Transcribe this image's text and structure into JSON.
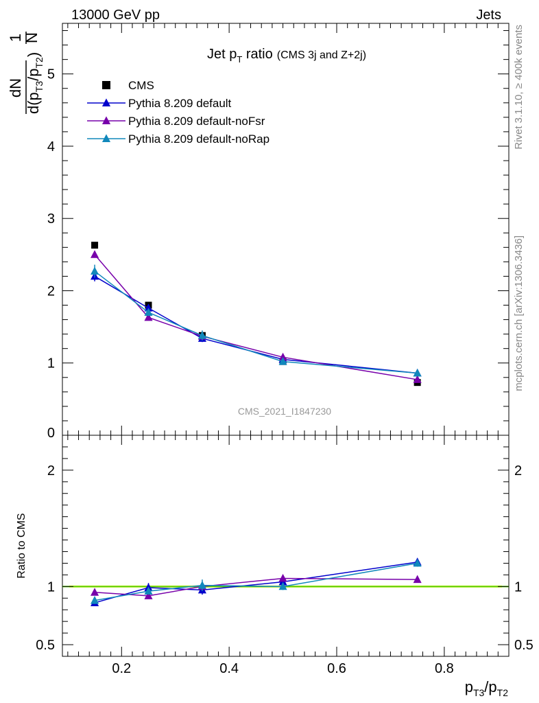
{
  "header": {
    "left": "13000 GeV pp",
    "right": "Jets"
  },
  "side_text": {
    "rivet": "Rivet 3.1.10, ≥ 400k events",
    "source": "mcplots.cern.ch [arXiv:1306.3436]"
  },
  "watermark": "CMS_2021_I1847230",
  "chart_data": {
    "type": "line",
    "title": {
      "main": "Jet p",
      "main_sub": "T",
      "main_suffix": " ratio",
      "small": "(CMS 3j and Z+2j)"
    },
    "ylabel_main": {
      "frac_num": "1",
      "frac_den": "N",
      "deriv_num": "dN",
      "deriv_den_prefix": "d(p",
      "deriv_den_sub1": "T3",
      "deriv_den_mid": "/p",
      "deriv_den_sub2": "T2",
      "deriv_den_suffix": ")"
    },
    "ylabel_ratio": "Ratio to CMS",
    "xlabel": {
      "p1": "p",
      "s1": "T3",
      "mid": "/p",
      "s2": "T2"
    },
    "xlim": [
      0.09,
      0.92
    ],
    "ylim_main": [
      0,
      5.7
    ],
    "ylim_ratio": [
      0.4,
      2.3
    ],
    "x_ticks": [
      "0.2",
      "0.4",
      "0.6",
      "0.8"
    ],
    "y_ticks_main": [
      "0",
      "1",
      "2",
      "3",
      "4",
      "5"
    ],
    "y_ticks_ratio": [
      "0.5",
      "1",
      "2"
    ],
    "x": [
      0.15,
      0.25,
      0.35,
      0.5,
      0.75
    ],
    "series": [
      {
        "name": "CMS",
        "marker": "square",
        "color": "#000000",
        "values": [
          2.63,
          1.8,
          1.38,
          1.02,
          0.73
        ],
        "errors": [
          0.03,
          0.03,
          0.02,
          0.02,
          0.02
        ],
        "ratio": [
          1.0,
          1.0,
          1.0,
          1.0,
          1.0
        ]
      },
      {
        "name": "Pythia 8.209 default",
        "marker": "triangle",
        "color": "#0000cc",
        "values": [
          2.2,
          1.76,
          1.34,
          1.05,
          0.86
        ],
        "errors": [
          0.07,
          0.05,
          0.05,
          0.03,
          0.03
        ],
        "ratio": [
          0.86,
          0.99,
          0.97,
          1.04,
          1.21
        ],
        "ratio_err": [
          0.02,
          0.04,
          0.04,
          0.03,
          0.03
        ]
      },
      {
        "name": "Pythia 8.209 default-noFsr",
        "marker": "triangle",
        "color": "#7700aa",
        "values": [
          2.5,
          1.63,
          1.37,
          1.08,
          0.77
        ],
        "errors": [
          0.04,
          0.03,
          0.03,
          0.02,
          0.02
        ],
        "ratio": [
          0.95,
          0.92,
          1.0,
          1.07,
          1.06
        ],
        "ratio_err": [
          0.02,
          0.02,
          0.02,
          0.02,
          0.02
        ]
      },
      {
        "name": "Pythia 8.209 default-noRap",
        "marker": "triangle",
        "color": "#1188bb",
        "values": [
          2.27,
          1.7,
          1.38,
          1.02,
          0.86
        ],
        "errors": [
          0.09,
          0.05,
          0.07,
          0.03,
          0.03
        ],
        "ratio": [
          0.88,
          0.96,
          1.01,
          1.0,
          1.2
        ],
        "ratio_err": [
          0.03,
          0.03,
          0.05,
          0.03,
          0.03
        ]
      }
    ],
    "reference_band": {
      "color": "#ffff66",
      "line_color": "#55cc00"
    }
  }
}
